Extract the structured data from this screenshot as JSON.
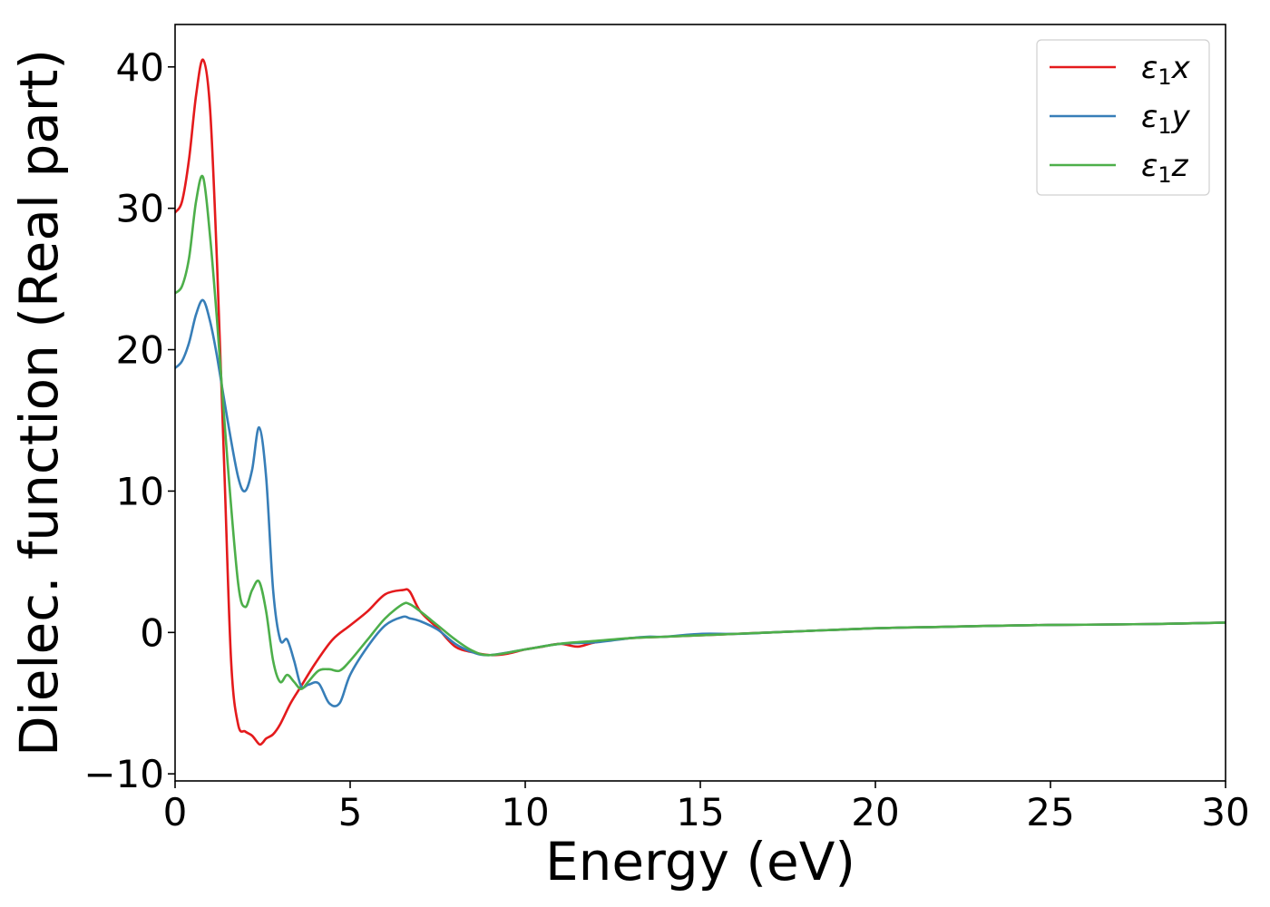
{
  "chart_data": {
    "type": "line",
    "title": "",
    "xlabel": "Energy (eV)",
    "ylabel": "Dielec. function (Real part)",
    "xlim": [
      0,
      30
    ],
    "ylim": [
      -10.5,
      43
    ],
    "xticks": [
      0,
      5,
      10,
      15,
      20,
      25,
      30
    ],
    "xtick_labels": [
      "0",
      "5",
      "10",
      "15",
      "20",
      "25",
      "30"
    ],
    "yticks": [
      -10,
      0,
      10,
      20,
      30,
      40
    ],
    "ytick_labels": [
      "−10",
      "0",
      "10",
      "20",
      "30",
      "40"
    ],
    "grid": false,
    "legend_position": "top-right",
    "series": [
      {
        "name": "ε₁x",
        "symbol": "ε",
        "subscript": "1",
        "suffix": "x",
        "color": "#e41a1c",
        "x": [
          0,
          0.2,
          0.4,
          0.6,
          0.8,
          1.0,
          1.2,
          1.4,
          1.6,
          1.8,
          2.0,
          2.2,
          2.4,
          2.5,
          2.6,
          2.8,
          3.0,
          3.3,
          3.6,
          4.0,
          4.5,
          5.0,
          5.5,
          6.0,
          6.5,
          6.7,
          7.0,
          7.5,
          8.0,
          8.5,
          9.0,
          9.5,
          10.0,
          10.5,
          11.0,
          11.5,
          12.0,
          13.0,
          14.0,
          15.0,
          16.0,
          17.0,
          18.0,
          20.0,
          22.0,
          24.0,
          26.0,
          28.0,
          30.0
        ],
        "y": [
          29.7,
          30.5,
          33.5,
          38,
          40.5,
          37,
          26,
          12,
          -2,
          -6.5,
          -7,
          -7.3,
          -7.9,
          -7.8,
          -7.5,
          -7.2,
          -6.5,
          -5,
          -3.8,
          -2.2,
          -0.5,
          0.5,
          1.5,
          2.7,
          3.0,
          2.9,
          1.5,
          0.3,
          -1.0,
          -1.4,
          -1.6,
          -1.5,
          -1.2,
          -1.0,
          -0.8,
          -1.0,
          -0.7,
          -0.4,
          -0.3,
          -0.2,
          -0.1,
          0,
          0.1,
          0.3,
          0.4,
          0.5,
          0.55,
          0.6,
          0.7
        ]
      },
      {
        "name": "ε₁y",
        "symbol": "ε",
        "subscript": "1",
        "suffix": "y",
        "color": "#377eb8",
        "x": [
          0,
          0.2,
          0.4,
          0.6,
          0.8,
          1.0,
          1.2,
          1.5,
          1.8,
          2.0,
          2.2,
          2.4,
          2.6,
          2.8,
          3.0,
          3.2,
          3.4,
          3.6,
          3.8,
          4.1,
          4.4,
          4.7,
          5.0,
          5.5,
          6.0,
          6.5,
          6.7,
          7.0,
          7.5,
          8.0,
          8.5,
          9.0,
          10.0,
          11.0,
          12.0,
          13.0,
          13.5,
          14.0,
          15.0,
          16.0,
          17.0,
          18.0,
          20.0,
          22.0,
          24.0,
          26.0,
          28.0,
          30.0
        ],
        "y": [
          18.7,
          19.2,
          20.5,
          22.5,
          23.5,
          22,
          19.5,
          15,
          11,
          10,
          11.5,
          14.5,
          11,
          3,
          -0.5,
          -0.5,
          -2,
          -3.8,
          -3.7,
          -3.6,
          -5,
          -5,
          -3,
          -1,
          0.5,
          1.1,
          1.0,
          0.8,
          0.2,
          -0.8,
          -1.4,
          -1.6,
          -1.2,
          -0.8,
          -0.7,
          -0.4,
          -0.3,
          -0.3,
          -0.1,
          -0.1,
          0,
          0.1,
          0.3,
          0.4,
          0.5,
          0.55,
          0.6,
          0.7
        ]
      },
      {
        "name": "ε₁z",
        "symbol": "ε",
        "subscript": "1",
        "suffix": "z",
        "color": "#4daf4a",
        "x": [
          0,
          0.2,
          0.4,
          0.6,
          0.8,
          1.0,
          1.2,
          1.5,
          1.8,
          2.0,
          2.2,
          2.4,
          2.6,
          2.8,
          3.0,
          3.2,
          3.4,
          3.6,
          3.8,
          4.1,
          4.4,
          4.7,
          5.0,
          5.5,
          6.0,
          6.5,
          6.7,
          7.0,
          7.5,
          8.0,
          8.5,
          9.0,
          10.0,
          11.0,
          12.0,
          13.0,
          14.0,
          15.0,
          16.0,
          17.0,
          18.0,
          20.0,
          22.0,
          24.0,
          26.0,
          28.0,
          30.0
        ],
        "y": [
          24,
          24.5,
          26.5,
          30.5,
          32.2,
          28,
          22,
          12,
          3.5,
          1.8,
          3,
          3.6,
          1.5,
          -2,
          -3.5,
          -3,
          -3.5,
          -4,
          -3.5,
          -2.7,
          -2.6,
          -2.7,
          -2.0,
          -0.5,
          1.0,
          2.0,
          2.0,
          1.5,
          0.5,
          -0.5,
          -1.3,
          -1.6,
          -1.2,
          -0.8,
          -0.6,
          -0.4,
          -0.3,
          -0.2,
          -0.1,
          0,
          0.1,
          0.3,
          0.4,
          0.5,
          0.55,
          0.6,
          0.7
        ]
      }
    ]
  }
}
